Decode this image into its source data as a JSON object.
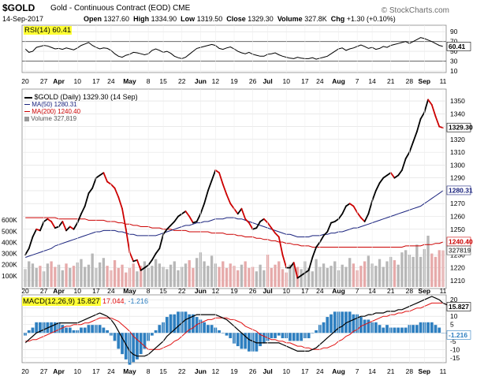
{
  "header": {
    "symbol": "$GOLD",
    "name": "Gold - Continuous Contract (EOD)",
    "exchange": "CME",
    "date": "14-Sep-2017",
    "open_label": "Open",
    "open": "1327.60",
    "high_label": "High",
    "high": "1334.90",
    "low_label": "Low",
    "low": "1319.50",
    "close_label": "Close",
    "close": "1329.30",
    "volume_label": "Volume",
    "volume": "327.8K",
    "chg_label": "Chg",
    "chg": "+1.30 (+0.10%)",
    "brand": "© StockCharts.com"
  },
  "legends": {
    "rsi": "RSI(14) 60.41",
    "price": "$GOLD (Daily) 1329.30 (14 Sep)",
    "ma50": "MA(50) 1280.31",
    "ma200": "MA(200) 1240.40",
    "volume": "Volume 327,819",
    "macd_main": "MACD(12,26,9) 15.827",
    "macd_signal": "17.044",
    "macd_hist": ", -1.216"
  },
  "colors": {
    "price_up": "#000000",
    "price_down": "#cc0000",
    "ma50": "#1a237e",
    "ma200": "#cc0000",
    "vol_up": "#b7b7b7",
    "vol_down": "#e6aaaa",
    "macd": "#000000",
    "signal": "#e01010",
    "hist": "#2e7fc0",
    "highlight": "#ffff33",
    "grid": "#dddddd"
  },
  "chart_data": [
    {
      "id": "rsi",
      "type": "line",
      "title": "RSI(14) 60.41",
      "ylim": [
        10,
        100
      ],
      "yticks": [
        90,
        70,
        50,
        30,
        10
      ],
      "reference_lines": [
        70,
        30
      ],
      "current_label": "60.41",
      "values": [
        55,
        48,
        50,
        58,
        60,
        62,
        61,
        58,
        55,
        56,
        54,
        57,
        55,
        53,
        57,
        62,
        65,
        68,
        62,
        58,
        55,
        57,
        56,
        52,
        45,
        40,
        38,
        42,
        44,
        48,
        47,
        45,
        43,
        45,
        52,
        55,
        52,
        48,
        50,
        46,
        40,
        37,
        35,
        38,
        44,
        50,
        56,
        58,
        60,
        62,
        64,
        62,
        56,
        54,
        57,
        59,
        55,
        50,
        47,
        45,
        48,
        44,
        42,
        40,
        40,
        44,
        45,
        47,
        43,
        40,
        38,
        36,
        35,
        38,
        36,
        35,
        35,
        37,
        34,
        36,
        38,
        40,
        45,
        50,
        55,
        57,
        52,
        55,
        57,
        60,
        63,
        60,
        56,
        58,
        54,
        56,
        60,
        58,
        62,
        64,
        66,
        68,
        70,
        66,
        70,
        74,
        78,
        76,
        73,
        70,
        66,
        62,
        60
      ]
    },
    {
      "id": "price",
      "type": "line",
      "title": "$GOLD (Daily) 1329.30 (14 Sep)",
      "ylim": [
        1205,
        1358
      ],
      "yticks": [
        1350,
        1340,
        1330,
        1320,
        1310,
        1300,
        1290,
        1280,
        1270,
        1260,
        1250,
        1240,
        1230,
        1220,
        1210
      ],
      "current_labels": {
        "close": "1329.30",
        "ma50": "1280.31",
        "ma200": "1240.40"
      },
      "close": [
        1230,
        1235,
        1244,
        1250,
        1249,
        1256,
        1258,
        1256,
        1251,
        1252,
        1256,
        1249,
        1252,
        1250,
        1255,
        1262,
        1268,
        1278,
        1282,
        1290,
        1292,
        1294,
        1287,
        1285,
        1282,
        1275,
        1266,
        1250,
        1232,
        1225,
        1226,
        1218,
        1220,
        1222,
        1226,
        1231,
        1235,
        1246,
        1250,
        1253,
        1256,
        1260,
        1262,
        1264,
        1260,
        1255,
        1256,
        1262,
        1270,
        1280,
        1288,
        1296,
        1294,
        1285,
        1277,
        1270,
        1266,
        1262,
        1266,
        1258,
        1255,
        1250,
        1251,
        1256,
        1258,
        1255,
        1251,
        1247,
        1244,
        1230,
        1220,
        1220,
        1224,
        1212,
        1214,
        1216,
        1218,
        1228,
        1236,
        1240,
        1245,
        1248,
        1255,
        1256,
        1258,
        1262,
        1268,
        1270,
        1268,
        1263,
        1259,
        1256,
        1262,
        1272,
        1280,
        1286,
        1290,
        1292,
        1294,
        1290,
        1292,
        1296,
        1305,
        1310,
        1318,
        1326,
        1336,
        1341,
        1351,
        1347,
        1338,
        1330,
        1329
      ],
      "ma50": [
        1228,
        1229,
        1230,
        1231,
        1232,
        1233,
        1234,
        1235,
        1237,
        1238,
        1239,
        1240,
        1241,
        1242,
        1243,
        1244,
        1245,
        1246,
        1247,
        1248,
        1248,
        1249,
        1249,
        1249,
        1249,
        1248,
        1248,
        1247,
        1246,
        1246,
        1245,
        1245,
        1245,
        1245,
        1245,
        1245,
        1246,
        1247,
        1248,
        1249,
        1250,
        1251,
        1252,
        1253,
        1253,
        1254,
        1255,
        1255,
        1256,
        1256,
        1257,
        1258,
        1258,
        1258,
        1259,
        1259,
        1259,
        1258,
        1258,
        1257,
        1256,
        1255,
        1254,
        1253,
        1252,
        1251,
        1250,
        1249,
        1248,
        1247,
        1246,
        1246,
        1245,
        1244,
        1244,
        1244,
        1244,
        1245,
        1245,
        1245,
        1246,
        1246,
        1247,
        1247,
        1248,
        1248,
        1249,
        1250,
        1251,
        1251,
        1252,
        1253,
        1254,
        1255,
        1256,
        1257,
        1258,
        1259,
        1260,
        1261,
        1262,
        1263,
        1264,
        1265,
        1266,
        1267,
        1268,
        1270,
        1272,
        1274,
        1276,
        1278,
        1280
      ],
      "ma200": [
        1259,
        1259,
        1259,
        1259,
        1259,
        1259,
        1259,
        1259,
        1259,
        1258,
        1258,
        1258,
        1258,
        1258,
        1258,
        1258,
        1258,
        1257,
        1257,
        1257,
        1257,
        1257,
        1256,
        1256,
        1256,
        1255,
        1255,
        1254,
        1254,
        1253,
        1253,
        1252,
        1252,
        1252,
        1251,
        1251,
        1251,
        1250,
        1250,
        1250,
        1249,
        1249,
        1249,
        1249,
        1248,
        1248,
        1248,
        1248,
        1248,
        1248,
        1247,
        1247,
        1247,
        1247,
        1246,
        1246,
        1246,
        1245,
        1245,
        1244,
        1244,
        1244,
        1243,
        1243,
        1242,
        1242,
        1241,
        1241,
        1240,
        1240,
        1239,
        1239,
        1238,
        1238,
        1237,
        1237,
        1237,
        1236,
        1236,
        1236,
        1236,
        1236,
        1236,
        1236,
        1236,
        1236,
        1236,
        1236,
        1236,
        1236,
        1236,
        1236,
        1236,
        1236,
        1236,
        1236,
        1236,
        1236,
        1236,
        1236,
        1236,
        1236,
        1237,
        1237,
        1237,
        1237,
        1237,
        1238,
        1238,
        1238,
        1239,
        1239,
        1240
      ],
      "volume_ylim": [
        0,
        700000
      ],
      "volume_ticks": [
        600000,
        500000,
        400000,
        300000,
        200000,
        100000
      ],
      "volume_tick_labels": [
        "600K",
        "500K",
        "400K",
        "300K",
        "200K",
        "100K"
      ],
      "volume_current_label": "327819",
      "volume": [
        160000,
        230000,
        210000,
        170000,
        190000,
        140000,
        210000,
        230000,
        180000,
        200000,
        150000,
        210000,
        170000,
        190000,
        220000,
        250000,
        180000,
        200000,
        300000,
        170000,
        220000,
        260000,
        190000,
        150000,
        240000,
        170000,
        200000,
        130000,
        170000,
        210000,
        140000,
        190000,
        230000,
        170000,
        190000,
        250000,
        210000,
        180000,
        160000,
        200000,
        230000,
        150000,
        180000,
        210000,
        240000,
        170000,
        260000,
        310000,
        230000,
        190000,
        280000,
        210000,
        180000,
        230000,
        170000,
        210000,
        190000,
        150000,
        200000,
        230000,
        170000,
        180000,
        140000,
        200000,
        150000,
        290000,
        170000,
        200000,
        230000,
        160000,
        130000,
        200000,
        210000,
        180000,
        160000,
        230000,
        170000,
        140000,
        250000,
        180000,
        210000,
        170000,
        190000,
        230000,
        150000,
        200000,
        180000,
        260000,
        210000,
        150000,
        190000,
        230000,
        280000,
        210000,
        190000,
        250000,
        180000,
        230000,
        270000,
        240000,
        200000,
        310000,
        330000,
        290000,
        270000,
        380000,
        270000,
        340000,
        460000,
        300000,
        270000,
        330000,
        328000
      ]
    },
    {
      "id": "macd",
      "type": "line",
      "title": "MACD(12,26,9) 15.827",
      "ylim": [
        -17,
        22
      ],
      "yticks": [
        20,
        15,
        10,
        5,
        0,
        -5,
        -10,
        -15
      ],
      "current_labels": {
        "macd": "15.827",
        "hist": "-1.216"
      },
      "macd": [
        -6,
        -4,
        -2,
        0,
        1,
        2,
        3,
        4,
        5,
        6,
        6,
        6,
        6,
        6,
        6,
        7,
        8,
        9,
        10,
        11,
        12,
        11,
        10,
        8,
        5,
        1,
        -3,
        -7,
        -11,
        -13,
        -14,
        -14,
        -14,
        -13,
        -11,
        -9,
        -7,
        -5,
        -2,
        0,
        2,
        4,
        6,
        8,
        9,
        10,
        11,
        11,
        11,
        11,
        11,
        11,
        10,
        9,
        8,
        6,
        4,
        2,
        0,
        -2,
        -4,
        -5,
        -6,
        -6,
        -6,
        -6,
        -6,
        -6,
        -6,
        -7,
        -8,
        -9,
        -10,
        -11,
        -11,
        -11,
        -11,
        -10,
        -9,
        -7,
        -5,
        -3,
        -1,
        1,
        3,
        4,
        6,
        7,
        8,
        9,
        10,
        10,
        11,
        11,
        12,
        12,
        12,
        13,
        13,
        13,
        14,
        14,
        15,
        16,
        17,
        18,
        19,
        20,
        21,
        22,
        21,
        20,
        18,
        17,
        16
      ],
      "signal": [
        -5,
        -5,
        -4,
        -4,
        -3,
        -2,
        -1,
        0,
        1,
        2,
        3,
        4,
        4,
        5,
        5,
        5,
        6,
        6,
        7,
        8,
        9,
        9,
        9,
        9,
        8,
        7,
        5,
        3,
        1,
        -2,
        -4,
        -6,
        -8,
        -10,
        -10,
        -10,
        -10,
        -9,
        -8,
        -7,
        -5,
        -4,
        -2,
        0,
        2,
        3,
        5,
        6,
        7,
        8,
        8,
        9,
        9,
        9,
        9,
        8,
        8,
        7,
        6,
        4,
        3,
        2,
        1,
        -1,
        -2,
        -3,
        -4,
        -4,
        -5,
        -5,
        -6,
        -6,
        -7,
        -8,
        -8,
        -9,
        -9,
        -10,
        -10,
        -10,
        -9,
        -9,
        -8,
        -7,
        -5,
        -4,
        -2,
        -1,
        1,
        2,
        4,
        5,
        6,
        7,
        8,
        9,
        10,
        10,
        11,
        11,
        12,
        12,
        13,
        13,
        14,
        15,
        15,
        16,
        17,
        18,
        18,
        18,
        18,
        17,
        17
      ]
    }
  ],
  "x_axis": {
    "labels": [
      "20",
      "27",
      "Apr",
      "10",
      "17",
      "24",
      "May",
      "8",
      "15",
      "22",
      "Jun",
      "12",
      "19",
      "26",
      "Jul",
      "10",
      "17",
      "24",
      "Aug",
      "7",
      "14",
      "21",
      "28",
      "Sep",
      "11"
    ],
    "bold_labels": [
      "Apr",
      "May",
      "Jun",
      "Jul",
      "Aug",
      "Sep"
    ]
  }
}
